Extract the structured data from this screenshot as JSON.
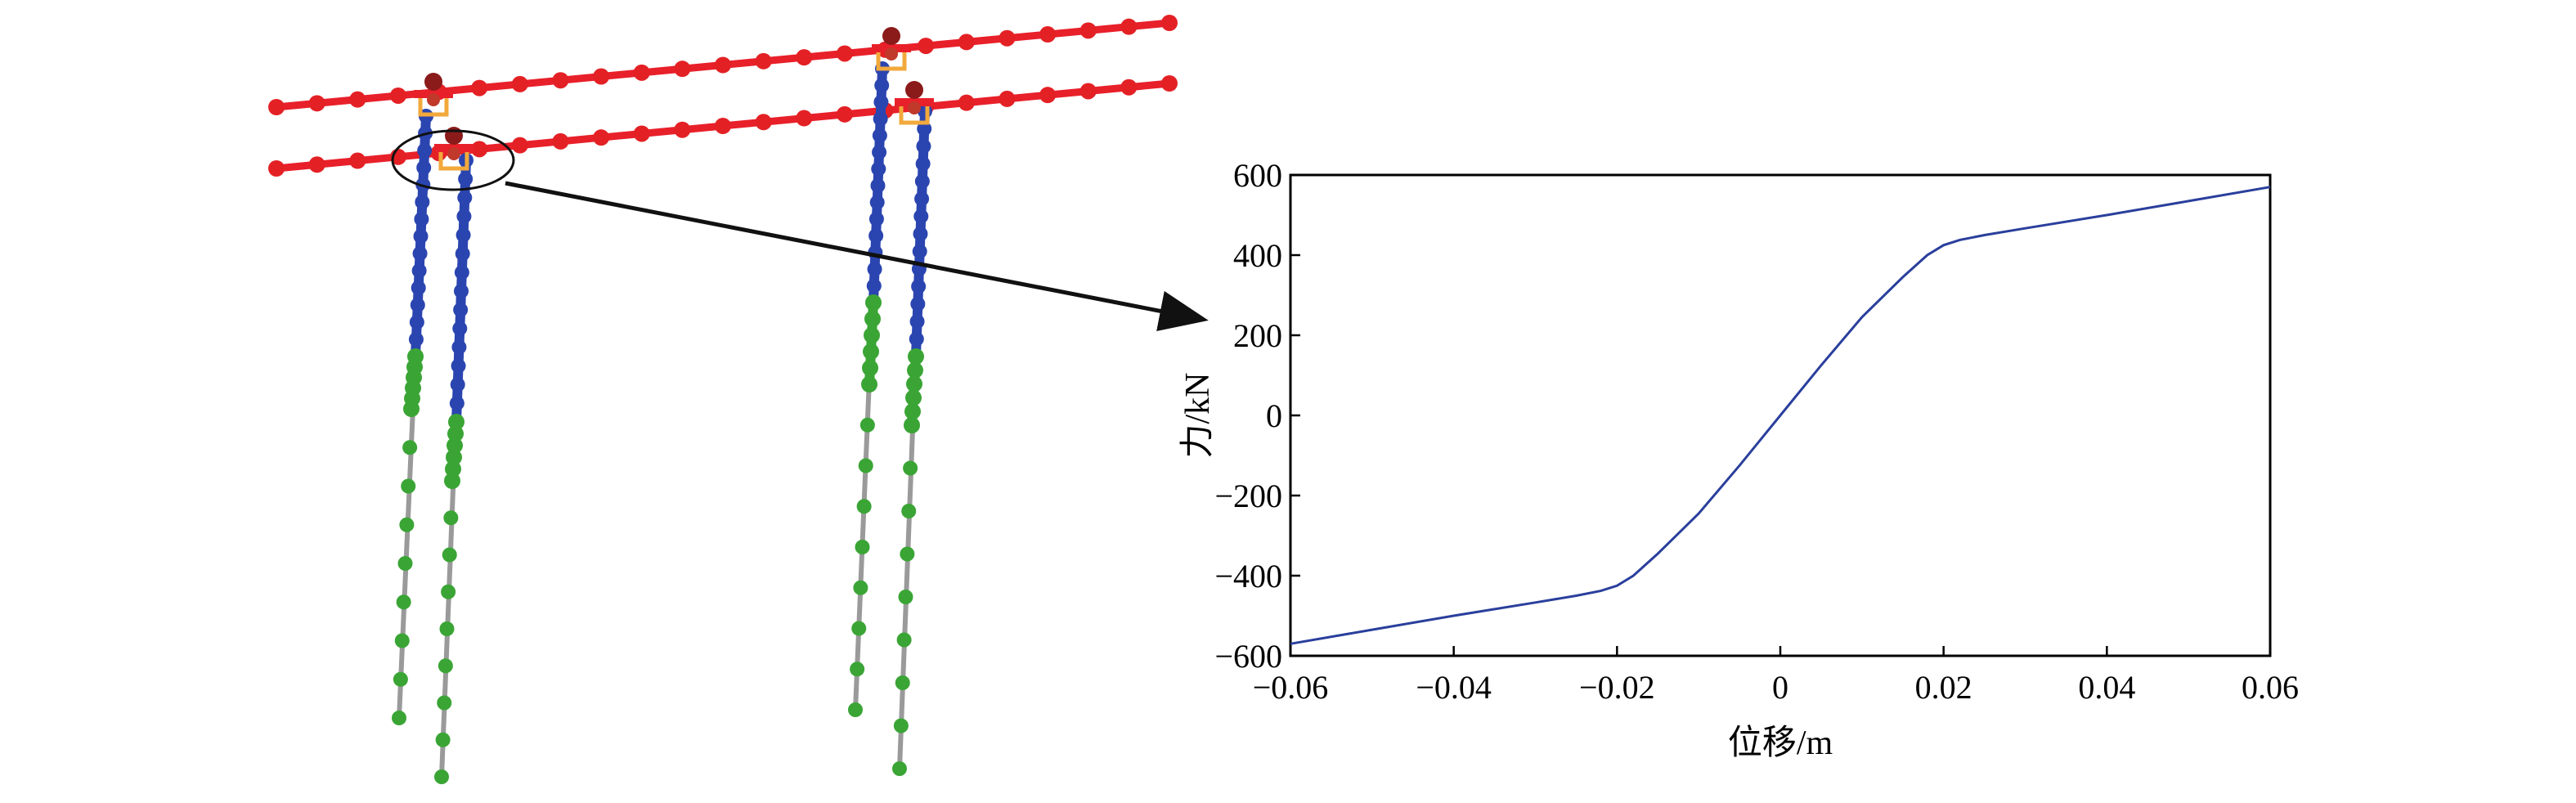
{
  "colors": {
    "beam": "#e8202a",
    "beam_node": "#e32125",
    "pile_upper": "#2b45b0",
    "pile_lower": "#3aa535",
    "pile_stem": "#9a9a9a",
    "bearing": "#f2a93b",
    "cap_node": "#8b1a1a",
    "curve": "#2a3f9c",
    "axis": "#000000",
    "arrow": "#111111"
  },
  "model": {
    "description_icon": "bridge-pile-model-icon"
  },
  "chart_data": {
    "type": "line",
    "title": "",
    "xlabel": "位移/m",
    "ylabel": "力/kN",
    "xlim": [
      -0.06,
      0.06
    ],
    "ylim": [
      -600,
      600
    ],
    "xticks": [
      -0.06,
      -0.04,
      -0.02,
      0,
      0.02,
      0.04,
      0.06
    ],
    "xtick_labels": [
      "−0.06",
      "−0.04",
      "−0.02",
      "0",
      "0.02",
      "0.04",
      "0.06"
    ],
    "yticks": [
      -600,
      -400,
      -200,
      0,
      200,
      400,
      600
    ],
    "ytick_labels": [
      "−600",
      "−400",
      "−200",
      "0",
      "200",
      "400",
      "600"
    ],
    "grid": false,
    "series": [
      {
        "x": [
          -0.06,
          -0.05,
          -0.04,
          -0.03,
          -0.025,
          -0.022,
          -0.02,
          -0.018,
          -0.015,
          -0.01,
          -0.005,
          0,
          0.005,
          0.01,
          0.015,
          0.018,
          0.02,
          0.022,
          0.025,
          0.03,
          0.04,
          0.05,
          0.06
        ],
        "y": [
          -570,
          -535,
          -500,
          -467,
          -450,
          -438,
          -425,
          -400,
          -345,
          -245,
          -125,
          0,
          125,
          245,
          345,
          400,
          425,
          438,
          450,
          467,
          500,
          535,
          570
        ]
      }
    ]
  }
}
